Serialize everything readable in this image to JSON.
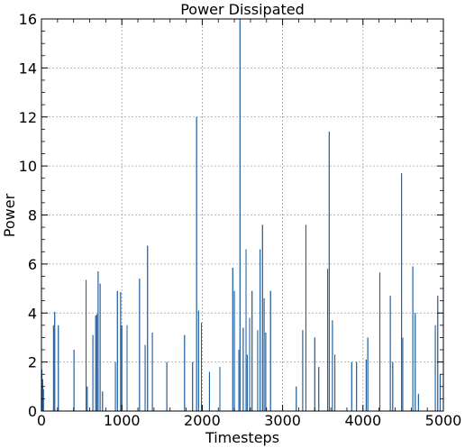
{
  "chart_data": {
    "type": "line",
    "title": "Power Dissipated",
    "xlabel": "Timesteps",
    "ylabel": "Power",
    "xlim": [
      0,
      5000
    ],
    "ylim": [
      0,
      16
    ],
    "x_ticks": [
      0,
      1000,
      2000,
      3000,
      4000,
      5000
    ],
    "y_ticks": [
      0,
      2,
      4,
      6,
      8,
      10,
      12,
      14,
      16
    ],
    "grid": true,
    "line_color": "#1f5fa0",
    "series": [
      {
        "name": "",
        "peaks": [
          {
            "x": 5,
            "y": 1.7
          },
          {
            "x": 15,
            "y": 1.3
          },
          {
            "x": 25,
            "y": 0.9
          },
          {
            "x": 150,
            "y": 3.5
          },
          {
            "x": 165,
            "y": 4.05
          },
          {
            "x": 210,
            "y": 3.5
          },
          {
            "x": 405,
            "y": 2.5
          },
          {
            "x": 555,
            "y": 5.35
          },
          {
            "x": 570,
            "y": 1.0
          },
          {
            "x": 640,
            "y": 3.1
          },
          {
            "x": 675,
            "y": 3.9
          },
          {
            "x": 690,
            "y": 3.95
          },
          {
            "x": 705,
            "y": 5.7
          },
          {
            "x": 730,
            "y": 5.2
          },
          {
            "x": 760,
            "y": 0.8
          },
          {
            "x": 920,
            "y": 2.0
          },
          {
            "x": 945,
            "y": 4.9
          },
          {
            "x": 985,
            "y": 4.85
          },
          {
            "x": 1000,
            "y": 3.5
          },
          {
            "x": 1065,
            "y": 3.5
          },
          {
            "x": 1220,
            "y": 5.4
          },
          {
            "x": 1290,
            "y": 2.7
          },
          {
            "x": 1320,
            "y": 6.75
          },
          {
            "x": 1380,
            "y": 3.2
          },
          {
            "x": 1560,
            "y": 2.0
          },
          {
            "x": 1780,
            "y": 3.1
          },
          {
            "x": 1880,
            "y": 2.0
          },
          {
            "x": 1930,
            "y": 12.0
          },
          {
            "x": 1955,
            "y": 4.1
          },
          {
            "x": 1990,
            "y": 3.6
          },
          {
            "x": 2090,
            "y": 1.6
          },
          {
            "x": 2220,
            "y": 1.8
          },
          {
            "x": 2380,
            "y": 5.85
          },
          {
            "x": 2400,
            "y": 4.9
          },
          {
            "x": 2455,
            "y": 2.5
          },
          {
            "x": 2470,
            "y": 16.0
          },
          {
            "x": 2510,
            "y": 3.4
          },
          {
            "x": 2545,
            "y": 6.6
          },
          {
            "x": 2560,
            "y": 2.3
          },
          {
            "x": 2590,
            "y": 3.8
          },
          {
            "x": 2620,
            "y": 4.9
          },
          {
            "x": 2690,
            "y": 3.3
          },
          {
            "x": 2720,
            "y": 6.6
          },
          {
            "x": 2750,
            "y": 7.6
          },
          {
            "x": 2770,
            "y": 4.6
          },
          {
            "x": 2790,
            "y": 3.2
          },
          {
            "x": 2850,
            "y": 4.9
          },
          {
            "x": 3170,
            "y": 1.0
          },
          {
            "x": 3250,
            "y": 3.3
          },
          {
            "x": 3290,
            "y": 7.6
          },
          {
            "x": 3400,
            "y": 3.0
          },
          {
            "x": 3450,
            "y": 1.8
          },
          {
            "x": 3560,
            "y": 5.8
          },
          {
            "x": 3580,
            "y": 11.4
          },
          {
            "x": 3620,
            "y": 3.7
          },
          {
            "x": 3650,
            "y": 2.3
          },
          {
            "x": 3860,
            "y": 2.0
          },
          {
            "x": 3920,
            "y": 2.0
          },
          {
            "x": 4040,
            "y": 2.1
          },
          {
            "x": 4060,
            "y": 3.0
          },
          {
            "x": 4210,
            "y": 5.65
          },
          {
            "x": 4340,
            "y": 4.7
          },
          {
            "x": 4370,
            "y": 2.0
          },
          {
            "x": 4480,
            "y": 9.7
          },
          {
            "x": 4495,
            "y": 3.0
          },
          {
            "x": 4620,
            "y": 5.9
          },
          {
            "x": 4650,
            "y": 4.0
          },
          {
            "x": 4690,
            "y": 0.7
          },
          {
            "x": 4900,
            "y": 3.5
          },
          {
            "x": 4930,
            "y": 4.7
          },
          {
            "x": 4960,
            "y": 1.5
          }
        ]
      }
    ]
  }
}
